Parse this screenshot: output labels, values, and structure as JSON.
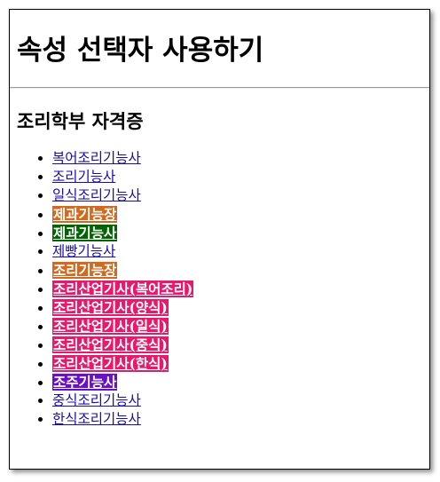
{
  "page": {
    "title": "속성 선택자 사용하기",
    "subtitle": "조리학부 자격증"
  },
  "colors": {
    "link": "#1a0dab",
    "orange": "#d2691e",
    "green": "#006400",
    "pink": "#e8196b",
    "purple": "#6a0dcc"
  },
  "links": [
    {
      "label": "복어조리기능사",
      "highlight": ""
    },
    {
      "label": "조리기능사",
      "highlight": ""
    },
    {
      "label": "일식조리기능사",
      "highlight": ""
    },
    {
      "label": "제과기능장",
      "highlight": "#d2691e"
    },
    {
      "label": "제과기능사",
      "highlight": "#006400"
    },
    {
      "label": "제빵기능사",
      "highlight": ""
    },
    {
      "label": "조리기능장",
      "highlight": "#d2691e"
    },
    {
      "label": "조리산업기사(복어조리)",
      "highlight": "#e8196b"
    },
    {
      "label": "조리산업기사(양식)",
      "highlight": "#e8196b"
    },
    {
      "label": "조리산업기사(일식)",
      "highlight": "#e8196b"
    },
    {
      "label": "조리산업기사(중식)",
      "highlight": "#e8196b"
    },
    {
      "label": "조리산업기사(한식)",
      "highlight": "#e8196b"
    },
    {
      "label": "조주기능사",
      "highlight": "#6a0dcc"
    },
    {
      "label": "중식조리기능사",
      "highlight": ""
    },
    {
      "label": "한식조리기능사",
      "highlight": ""
    }
  ]
}
